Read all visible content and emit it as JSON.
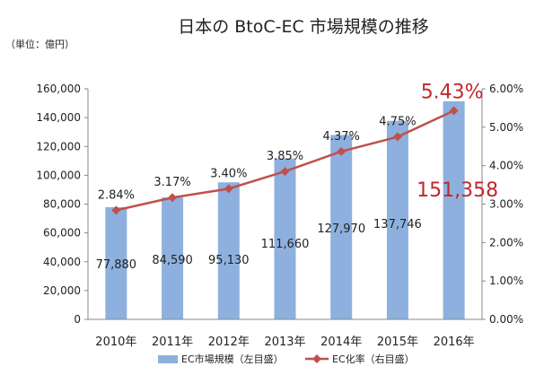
{
  "chart_data": {
    "type": "bar+line",
    "title": "日本の BtoC-EC 市場規模の推移",
    "unit_label": "（単位：億円）",
    "categories": [
      "2010年",
      "2011年",
      "2012年",
      "2013年",
      "2014年",
      "2015年",
      "2016年"
    ],
    "left_axis": {
      "min": 0,
      "max": 160000,
      "ticks": [
        "0",
        "20,000",
        "40,000",
        "60,000",
        "80,000",
        "100,000",
        "120,000",
        "140,000",
        "160,000"
      ]
    },
    "right_axis": {
      "min": 0,
      "max": 6,
      "ticks": [
        "0.00%",
        "1.00%",
        "2.00%",
        "3.00%",
        "4.00%",
        "5.00%",
        "6.00%"
      ]
    },
    "series": [
      {
        "name": "EC市場規模（左目盛）",
        "type": "bar",
        "axis": "left",
        "color": "#8eb0de",
        "values": [
          77880,
          84590,
          95130,
          111660,
          127970,
          137746,
          151358
        ],
        "labels": [
          "77,880",
          "84,590",
          "95,130",
          "111,660",
          "127,970",
          "137,746",
          "151,358"
        ]
      },
      {
        "name": "EC化率（右目盛）",
        "type": "line",
        "axis": "right",
        "color": "#c0504d",
        "values": [
          2.84,
          3.17,
          3.4,
          3.85,
          4.37,
          4.75,
          5.43
        ],
        "labels": [
          "2.84%",
          "3.17%",
          "3.40%",
          "3.85%",
          "4.37%",
          "4.75%",
          "5.43%"
        ]
      }
    ],
    "highlight_color": "#c0282d",
    "legend_position": "bottom"
  }
}
